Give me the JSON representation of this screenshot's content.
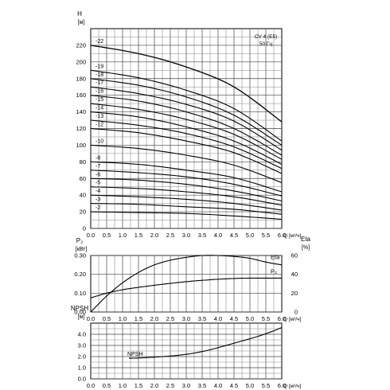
{
  "chart_data": [
    {
      "id": "head",
      "type": "line",
      "title_lines": [
        "CV 4 (E5)",
        "50 Гц"
      ],
      "ylabel": "H",
      "yunit": "[м]",
      "xunit": "Q [м³/ч]",
      "xlim": [
        0,
        6.0
      ],
      "ylim": [
        0,
        240
      ],
      "xticks": [
        "0.0",
        "0.5",
        "1.0",
        "1.5",
        "2.0",
        "2.5",
        "3.0",
        "3.5",
        "4.0",
        "4.5",
        "5.0",
        "5.5",
        "6.0"
      ],
      "yticks": [
        "0",
        "20",
        "40",
        "60",
        "80",
        "100",
        "120",
        "140",
        "160",
        "180",
        "200",
        "220"
      ],
      "ytick_values": [
        0,
        20,
        40,
        60,
        80,
        100,
        120,
        140,
        160,
        180,
        200,
        220
      ],
      "grid": true,
      "x": [
        0.0,
        1.5,
        3.0,
        4.5,
        6.0
      ],
      "series": [
        {
          "name": "-22",
          "values": [
            220,
            210,
            194,
            170,
            128
          ],
          "highlight": true
        },
        {
          "name": "-19",
          "values": [
            190,
            181,
            166,
            144,
            105
          ]
        },
        {
          "name": "-18",
          "values": [
            180,
            172,
            158,
            136,
            100
          ]
        },
        {
          "name": "-17",
          "values": [
            170,
            162,
            149,
            129,
            94
          ]
        },
        {
          "name": "-16",
          "values": [
            160,
            153,
            140,
            120,
            88
          ]
        },
        {
          "name": "-15",
          "values": [
            150,
            143,
            131,
            113,
            83
          ]
        },
        {
          "name": "-14",
          "values": [
            140,
            134,
            122,
            105,
            77
          ]
        },
        {
          "name": "-13",
          "values": [
            130,
            124,
            114,
            98,
            72
          ]
        },
        {
          "name": "-12",
          "values": [
            120,
            115,
            105,
            91,
            66
          ]
        },
        {
          "name": "-10",
          "values": [
            100,
            96,
            88,
            76,
            55
          ]
        },
        {
          "name": "-8",
          "values": [
            80,
            77,
            70,
            61,
            44
          ]
        },
        {
          "name": "-7",
          "values": [
            70,
            67,
            62,
            53,
            39
          ]
        },
        {
          "name": "-6",
          "values": [
            60,
            58,
            53,
            45,
            33
          ]
        },
        {
          "name": "-5",
          "values": [
            50,
            48,
            44,
            38,
            28
          ]
        },
        {
          "name": "-4",
          "values": [
            40,
            38,
            35,
            30,
            22
          ]
        },
        {
          "name": "-3",
          "values": [
            30,
            29,
            26,
            23,
            17
          ]
        },
        {
          "name": "-2",
          "values": [
            20,
            19,
            18,
            15,
            11
          ]
        }
      ]
    },
    {
      "id": "power",
      "type": "line",
      "ylabel": "P₂",
      "yunit": "[кВт]",
      "y2label": "Eta",
      "y2unit": "[%]",
      "xunit": "Q [м³/ч]",
      "xlim": [
        0,
        6.0
      ],
      "ylim": [
        0,
        0.3
      ],
      "y2lim": [
        0,
        60
      ],
      "xticks": [
        "0.0",
        "0.5",
        "1.0",
        "1.5",
        "2.0",
        "2.5",
        "3.0",
        "3.5",
        "4.0",
        "4.5",
        "5.0",
        "5.5",
        "6.0"
      ],
      "yticks": [
        "0.00",
        "0.10",
        "0.20",
        "0.30"
      ],
      "ytick_values": [
        0.0,
        0.1,
        0.2,
        0.3
      ],
      "y2ticks": [
        "0",
        "20",
        "40",
        "60"
      ],
      "y2tick_values": [
        0,
        20,
        40,
        60
      ],
      "grid": true,
      "series": [
        {
          "name": "Eta",
          "axis": "right",
          "x": [
            0.0,
            0.5,
            1.0,
            1.5,
            2.0,
            2.5,
            3.0,
            3.5,
            4.0,
            4.5,
            5.0,
            5.5,
            6.0
          ],
          "values": [
            0,
            17,
            31,
            42,
            50,
            55,
            58,
            60,
            60,
            59,
            57,
            53,
            50
          ]
        },
        {
          "name": "P₂",
          "axis": "left",
          "x": [
            0.0,
            0.5,
            1.0,
            1.5,
            2.0,
            2.5,
            3.0,
            3.5,
            4.0,
            4.5,
            5.0,
            5.5,
            6.0
          ],
          "values": [
            0.075,
            0.1,
            0.118,
            0.131,
            0.142,
            0.152,
            0.161,
            0.168,
            0.174,
            0.178,
            0.18,
            0.18,
            0.18
          ]
        }
      ],
      "series_labels": {
        "Eta": "Eta",
        "P₂": "P₂"
      }
    },
    {
      "id": "npsh",
      "type": "line",
      "ylabel": "NPSH",
      "yunit": "[м]",
      "xunit": "Q [м³/ч]",
      "xlim": [
        0,
        6.0
      ],
      "ylim": [
        0,
        5
      ],
      "xticks": [
        "0.0",
        "0.5",
        "1.0",
        "1.5",
        "2.0",
        "2.5",
        "3.0",
        "3.5",
        "4.0",
        "4.5",
        "5.0",
        "5.5",
        "6.0"
      ],
      "yticks": [
        "0.0",
        "1.0",
        "2.0",
        "3.0",
        "4.0"
      ],
      "ytick_values": [
        0,
        1,
        2,
        3,
        4
      ],
      "grid": true,
      "series": [
        {
          "name": "NPSH",
          "x": [
            1.2,
            1.5,
            2.0,
            2.5,
            3.0,
            3.5,
            4.0,
            4.5,
            5.0,
            5.5,
            6.0
          ],
          "values": [
            1.85,
            1.87,
            1.95,
            2.05,
            2.2,
            2.45,
            2.8,
            3.2,
            3.6,
            4.05,
            4.6
          ]
        }
      ],
      "series_label": "NPSH"
    }
  ]
}
